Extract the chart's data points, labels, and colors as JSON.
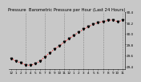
{
  "title": "Pressure  Barometric Pressure per Hour (Last 24 Hours)",
  "x_values": [
    0,
    1,
    2,
    3,
    4,
    5,
    6,
    7,
    8,
    9,
    10,
    11,
    12,
    13,
    14,
    15,
    16,
    17,
    18,
    19,
    20,
    21,
    22,
    23
  ],
  "y_values": [
    29.55,
    29.5,
    29.47,
    29.43,
    29.42,
    29.45,
    29.5,
    29.58,
    29.65,
    29.72,
    29.78,
    29.85,
    29.91,
    29.97,
    30.03,
    30.08,
    30.13,
    30.17,
    30.2,
    30.22,
    30.24,
    30.25,
    30.22,
    30.24
  ],
  "line_color": "#ff0000",
  "marker_color": "#000000",
  "bg_color": "#c8c8c8",
  "plot_bg_color": "#c8c8c8",
  "grid_color": "#888888",
  "title_fontsize": 3.8,
  "tick_fontsize": 3.0,
  "ylim": [
    29.35,
    30.35
  ],
  "ylabel_values": [
    29.4,
    29.6,
    29.8,
    30.0,
    30.2,
    30.4
  ],
  "x_tick_labels": [
    "12",
    "1",
    "2",
    "3",
    "4",
    "5",
    "6",
    "7",
    "8",
    "9",
    "10",
    "11",
    "12",
    "1",
    "2",
    "3",
    "4",
    "5",
    "6",
    "7",
    "8",
    "9",
    "10",
    "11"
  ],
  "grid_x_positions": [
    3,
    7,
    11,
    15,
    19,
    23
  ]
}
